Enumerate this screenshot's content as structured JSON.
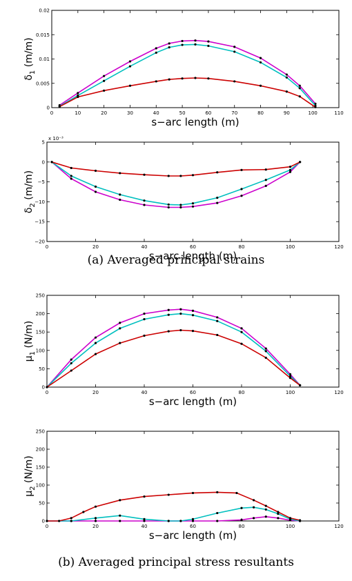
{
  "captions": {
    "a": "(a) Averaged principal strains",
    "b": "(b) Averaged principal stress resultants"
  },
  "chart_data": [
    {
      "id": "delta1",
      "type": "line",
      "xlabel": "s−arc length (m)",
      "ylabel_base": "δ",
      "ylabel_sub": "1",
      "ylabel_unit": " (m/m)",
      "xlim": [
        0,
        110
      ],
      "ylim": [
        0,
        0.02
      ],
      "xticks": [
        0,
        10,
        20,
        30,
        40,
        50,
        60,
        70,
        80,
        90,
        100,
        110
      ],
      "yticks": [
        0,
        0.005,
        0.01,
        0.015,
        0.02
      ],
      "ytick_labels": [
        "0",
        "0.005",
        "0.01",
        "0.015",
        "0.02"
      ],
      "exponent_label": "",
      "colors": [
        "#cc00cc",
        "#00bfbf",
        "#cc0000"
      ],
      "series": [
        {
          "x": [
            3,
            10,
            20,
            30,
            40,
            45,
            50,
            55,
            60,
            70,
            80,
            90,
            95,
            101
          ],
          "y": [
            0.0005,
            0.003,
            0.0065,
            0.0095,
            0.0122,
            0.0132,
            0.0137,
            0.0138,
            0.0136,
            0.0125,
            0.0102,
            0.0068,
            0.0045,
            0.0008
          ]
        },
        {
          "x": [
            3,
            10,
            20,
            30,
            40,
            45,
            50,
            55,
            60,
            70,
            80,
            90,
            95,
            101
          ],
          "y": [
            0.0003,
            0.0025,
            0.0055,
            0.0085,
            0.0113,
            0.0124,
            0.0129,
            0.013,
            0.0127,
            0.0115,
            0.0093,
            0.0062,
            0.004,
            0.0004
          ]
        },
        {
          "x": [
            3,
            10,
            20,
            30,
            40,
            45,
            50,
            55,
            60,
            70,
            80,
            90,
            95,
            101
          ],
          "y": [
            0.0002,
            0.0022,
            0.0035,
            0.0045,
            0.0054,
            0.0058,
            0.006,
            0.0061,
            0.006,
            0.0054,
            0.0045,
            0.0033,
            0.0023,
            0.0001
          ]
        }
      ]
    },
    {
      "id": "delta2",
      "type": "line",
      "xlabel": "s−arc length (m)",
      "ylabel_base": "δ",
      "ylabel_sub": "2",
      "ylabel_unit": " (m/m)",
      "xlim": [
        0,
        120
      ],
      "ylim": [
        -0.02,
        0.005
      ],
      "xticks": [
        0,
        20,
        40,
        60,
        80,
        100,
        120
      ],
      "yticks": [
        -0.02,
        -0.015,
        -0.01,
        -0.005,
        0,
        0.005
      ],
      "ytick_labels": [
        "−20",
        "−15",
        "−10",
        "−5",
        "0",
        "5"
      ],
      "exponent_label": "x 10⁻³",
      "colors": [
        "#cc00cc",
        "#00bfbf",
        "#cc0000"
      ],
      "series": [
        {
          "x": [
            2,
            10,
            20,
            30,
            40,
            50,
            55,
            60,
            70,
            80,
            90,
            100,
            104
          ],
          "y": [
            0,
            -0.0042,
            -0.0075,
            -0.0095,
            -0.0108,
            -0.0114,
            -0.0114,
            -0.0112,
            -0.0103,
            -0.0085,
            -0.006,
            -0.0025,
            0
          ]
        },
        {
          "x": [
            2,
            10,
            20,
            30,
            40,
            50,
            55,
            60,
            70,
            80,
            90,
            100,
            104
          ],
          "y": [
            0,
            -0.0035,
            -0.0062,
            -0.0082,
            -0.0097,
            -0.0107,
            -0.0108,
            -0.0104,
            -0.009,
            -0.0068,
            -0.0045,
            -0.002,
            0
          ]
        },
        {
          "x": [
            2,
            10,
            20,
            30,
            40,
            50,
            55,
            60,
            70,
            80,
            90,
            100,
            104
          ],
          "y": [
            0,
            -0.0015,
            -0.0022,
            -0.0028,
            -0.0032,
            -0.0035,
            -0.0035,
            -0.0033,
            -0.0026,
            -0.002,
            -0.0019,
            -0.0012,
            0
          ]
        }
      ]
    },
    {
      "id": "mu1",
      "type": "line",
      "xlabel": "s−arc length (m)",
      "ylabel_base": "μ",
      "ylabel_sub": "1",
      "ylabel_unit": " (N/m)",
      "xlim": [
        0,
        120
      ],
      "ylim": [
        0,
        250
      ],
      "xticks": [
        0,
        20,
        40,
        60,
        80,
        100,
        120
      ],
      "yticks": [
        0,
        50,
        100,
        150,
        200,
        250
      ],
      "ytick_labels": [
        "0",
        "50",
        "100",
        "150",
        "200",
        "250"
      ],
      "exponent_label": "",
      "colors": [
        "#cc00cc",
        "#00bfbf",
        "#cc0000"
      ],
      "series": [
        {
          "x": [
            0,
            10,
            20,
            30,
            40,
            50,
            55,
            60,
            70,
            80,
            90,
            100,
            104
          ],
          "y": [
            0,
            75,
            135,
            175,
            200,
            210,
            212,
            208,
            190,
            160,
            105,
            35,
            5
          ]
        },
        {
          "x": [
            0,
            10,
            20,
            30,
            40,
            50,
            55,
            60,
            70,
            80,
            90,
            100,
            104
          ],
          "y": [
            0,
            65,
            120,
            160,
            185,
            197,
            200,
            196,
            180,
            150,
            98,
            30,
            5
          ]
        },
        {
          "x": [
            0,
            10,
            20,
            30,
            40,
            50,
            55,
            60,
            70,
            80,
            90,
            100,
            104
          ],
          "y": [
            0,
            45,
            90,
            120,
            140,
            152,
            155,
            153,
            142,
            118,
            80,
            25,
            5
          ]
        }
      ]
    },
    {
      "id": "mu2",
      "type": "line",
      "xlabel": "s−arc length (m)",
      "ylabel_base": "μ",
      "ylabel_sub": "2",
      "ylabel_unit": " (N/m)",
      "xlim": [
        0,
        120
      ],
      "ylim": [
        0,
        250
      ],
      "xticks": [
        0,
        20,
        40,
        60,
        80,
        100,
        120
      ],
      "yticks": [
        0,
        50,
        100,
        150,
        200,
        250
      ],
      "ytick_labels": [
        "0",
        "50",
        "100",
        "150",
        "200",
        "250"
      ],
      "exponent_label": "",
      "colors": [
        "#cc00cc",
        "#00bfbf",
        "#cc0000"
      ],
      "series": [
        {
          "x": [
            0,
            10,
            20,
            30,
            40,
            50,
            55,
            60,
            70,
            80,
            85,
            90,
            95,
            100,
            104
          ],
          "y": [
            0,
            0,
            0,
            0,
            0,
            0,
            0,
            0,
            0,
            3,
            8,
            12,
            8,
            2,
            0
          ]
        },
        {
          "x": [
            0,
            10,
            20,
            30,
            40,
            50,
            55,
            60,
            70,
            80,
            85,
            90,
            95,
            100,
            104
          ],
          "y": [
            0,
            0,
            8,
            15,
            5,
            0,
            0,
            5,
            22,
            36,
            38,
            32,
            20,
            5,
            0
          ]
        },
        {
          "x": [
            0,
            5,
            10,
            15,
            20,
            30,
            40,
            50,
            60,
            70,
            78,
            85,
            90,
            95,
            100,
            104
          ],
          "y": [
            0,
            0,
            8,
            25,
            40,
            58,
            68,
            73,
            78,
            80,
            78,
            58,
            42,
            25,
            8,
            2
          ]
        }
      ]
    }
  ]
}
